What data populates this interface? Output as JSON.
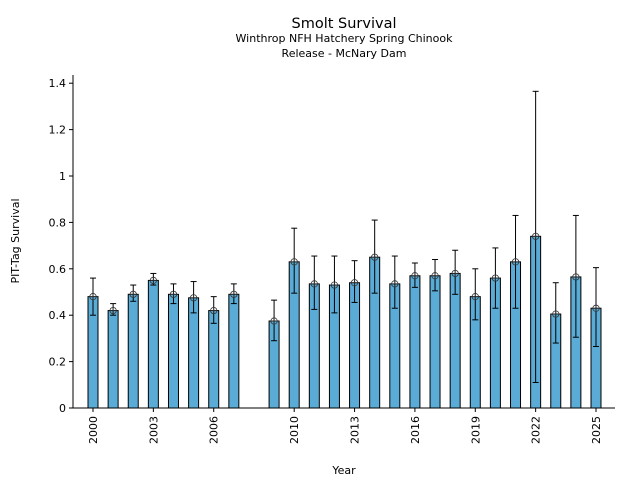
{
  "chart_data": {
    "type": "bar",
    "title": "Smolt Survival",
    "subtitle_lines": [
      "Winthrop NFH Hatchery Spring Chinook",
      "Release - McNary Dam"
    ],
    "xlabel": "Year",
    "ylabel": "PIT-Tag Survival",
    "ylim": [
      0,
      1.43
    ],
    "xlim": [
      1999.4,
      2025.9
    ],
    "yticks": [
      0,
      0.2,
      0.4,
      0.6,
      0.8,
      1,
      1.2,
      1.4
    ],
    "ytick_labels": [
      "0",
      "0.2",
      "0.4",
      "0.6",
      "0.8",
      "1",
      "1.2",
      "1.4"
    ],
    "xticks": [
      2000,
      2003,
      2006,
      2010,
      2013,
      2016,
      2019,
      2022,
      2025
    ],
    "xtick_labels": [
      "2000",
      "2003",
      "2006",
      "2010",
      "2013",
      "2016",
      "2019",
      "2022",
      "2025"
    ],
    "bar_color": "#5aabd6",
    "grid": false,
    "points": [
      {
        "year": 2000,
        "value": 0.48,
        "lo": 0.4,
        "hi": 0.56
      },
      {
        "year": 2001,
        "value": 0.42,
        "lo": 0.4,
        "hi": 0.45
      },
      {
        "year": 2002,
        "value": 0.49,
        "lo": 0.46,
        "hi": 0.53
      },
      {
        "year": 2003,
        "value": 0.55,
        "lo": 0.53,
        "hi": 0.58
      },
      {
        "year": 2004,
        "value": 0.49,
        "lo": 0.45,
        "hi": 0.535
      },
      {
        "year": 2005,
        "value": 0.475,
        "lo": 0.41,
        "hi": 0.545
      },
      {
        "year": 2006,
        "value": 0.42,
        "lo": 0.365,
        "hi": 0.48
      },
      {
        "year": 2007,
        "value": 0.49,
        "lo": 0.45,
        "hi": 0.535
      },
      {
        "year": 2009,
        "value": 0.375,
        "lo": 0.29,
        "hi": 0.465
      },
      {
        "year": 2010,
        "value": 0.63,
        "lo": 0.495,
        "hi": 0.775
      },
      {
        "year": 2011,
        "value": 0.535,
        "lo": 0.425,
        "hi": 0.655
      },
      {
        "year": 2012,
        "value": 0.53,
        "lo": 0.41,
        "hi": 0.655
      },
      {
        "year": 2013,
        "value": 0.54,
        "lo": 0.455,
        "hi": 0.635
      },
      {
        "year": 2014,
        "value": 0.65,
        "lo": 0.495,
        "hi": 0.81
      },
      {
        "year": 2015,
        "value": 0.535,
        "lo": 0.43,
        "hi": 0.655
      },
      {
        "year": 2016,
        "value": 0.57,
        "lo": 0.52,
        "hi": 0.625
      },
      {
        "year": 2017,
        "value": 0.57,
        "lo": 0.505,
        "hi": 0.64
      },
      {
        "year": 2018,
        "value": 0.58,
        "lo": 0.49,
        "hi": 0.68
      },
      {
        "year": 2019,
        "value": 0.48,
        "lo": 0.38,
        "hi": 0.6
      },
      {
        "year": 2020,
        "value": 0.56,
        "lo": 0.43,
        "hi": 0.69
      },
      {
        "year": 2021,
        "value": 0.63,
        "lo": 0.43,
        "hi": 0.83
      },
      {
        "year": 2022,
        "value": 0.74,
        "lo": 0.11,
        "hi": 1.365
      },
      {
        "year": 2023,
        "value": 0.405,
        "lo": 0.28,
        "hi": 0.54
      },
      {
        "year": 2024,
        "value": 0.565,
        "lo": 0.305,
        "hi": 0.83
      },
      {
        "year": 2025,
        "value": 0.43,
        "lo": 0.265,
        "hi": 0.605
      }
    ]
  }
}
